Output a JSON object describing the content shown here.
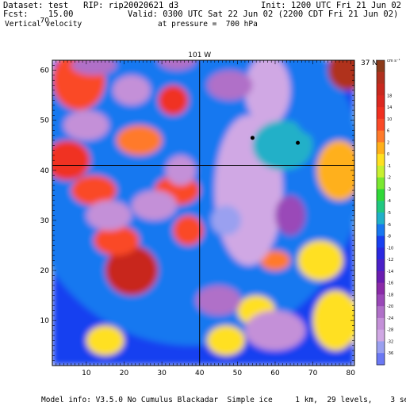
{
  "header": {
    "dataset": "Dataset: test   RIP: rip20020621 d3",
    "init": "Init: 1200 UTC Fri 21 Jun 02",
    "fcst": "Fcst:    15.00",
    "valid": "Valid: 0300 UTC Sat 22 Jun 02 (2200 CDT Fri 21 Jun 02)",
    "field": "Vertical velocity",
    "pressure": "at pressure =  700 hPa"
  },
  "footer": {
    "model_info": "Model info: V3.5.0 No Cumulus Blackadar  Simple ice     1 km,  29 levels,    3 sec"
  },
  "chart_data": {
    "type": "heatmap",
    "title": "Vertical velocity",
    "xlim": [
      1,
      81
    ],
    "ylim": [
      1,
      62
    ],
    "x_ticks": [
      10,
      20,
      30,
      40,
      50,
      60,
      70,
      80
    ],
    "y_ticks": [
      10,
      20,
      30,
      40,
      50,
      60,
      70
    ],
    "crosshair": {
      "x": 40,
      "y": 41,
      "x_label": "101 W",
      "y_label": "37 N"
    },
    "points": [
      {
        "x": 54,
        "y": 46.5
      },
      {
        "x": 66,
        "y": 45.5
      }
    ],
    "colorbar": {
      "unit": "cm s⁻¹",
      "levels": [
        {
          "label": "",
          "color": "#8b3a1a"
        },
        {
          "label": "",
          "color": "#b0301e"
        },
        {
          "label": "18",
          "color": "#c8281e"
        },
        {
          "label": "14",
          "color": "#dc2820"
        },
        {
          "label": "10",
          "color": "#f03020"
        },
        {
          "label": "6",
          "color": "#fa4a28"
        },
        {
          "label": "2",
          "color": "#ff7a2a"
        },
        {
          "label": "0",
          "color": "#ffb01a"
        },
        {
          "label": "-1",
          "color": "#ffe020"
        },
        {
          "label": "-2",
          "color": "#c8f030"
        },
        {
          "label": "-3",
          "color": "#7ae830"
        },
        {
          "label": "-4",
          "color": "#30d838"
        },
        {
          "label": "-5",
          "color": "#20c880"
        },
        {
          "label": "-6",
          "color": "#20b0c8"
        },
        {
          "label": "-8",
          "color": "#1878f0"
        },
        {
          "label": "-10",
          "color": "#1840f0"
        },
        {
          "label": "-12",
          "color": "#2a28e0"
        },
        {
          "label": "-14",
          "color": "#4a20c8"
        },
        {
          "label": "-16",
          "color": "#6a1cb0"
        },
        {
          "label": "-18",
          "color": "#8a2aa8"
        },
        {
          "label": "-20",
          "color": "#9a48b8"
        },
        {
          "label": "-24",
          "color": "#b070c8"
        },
        {
          "label": "-28",
          "color": "#c490d8"
        },
        {
          "label": "-32",
          "color": "#d0a8e4"
        },
        {
          "label": "-36",
          "color": "#9aa0f0"
        },
        {
          "label": "",
          "color": "#6a78f4"
        }
      ]
    },
    "field_blobs": [
      {
        "x": 38,
        "y": 40,
        "rx": 45,
        "ry": 35,
        "v": 0.45
      },
      {
        "x": 8,
        "y": 58,
        "rx": 7,
        "ry": 6,
        "v": 0.8
      },
      {
        "x": 5,
        "y": 42,
        "rx": 6,
        "ry": 4,
        "v": 0.85
      },
      {
        "x": 22,
        "y": 20,
        "rx": 7,
        "ry": 5,
        "v": 0.9
      },
      {
        "x": 18,
        "y": 26,
        "rx": 6,
        "ry": 3,
        "v": 0.8
      },
      {
        "x": 33,
        "y": 54,
        "rx": 4,
        "ry": 3,
        "v": 0.85
      },
      {
        "x": 24,
        "y": 46,
        "rx": 6,
        "ry": 3,
        "v": 0.75
      },
      {
        "x": 34,
        "y": 36,
        "rx": 6,
        "ry": 3,
        "v": 0.8
      },
      {
        "x": 12,
        "y": 36,
        "rx": 6,
        "ry": 3,
        "v": 0.8
      },
      {
        "x": 15,
        "y": 6,
        "rx": 5,
        "ry": 3,
        "v": 0.7
      },
      {
        "x": 79,
        "y": 60,
        "rx": 5,
        "ry": 4,
        "v": 0.95
      },
      {
        "x": 60,
        "y": 22,
        "rx": 4,
        "ry": 2,
        "v": 0.75
      },
      {
        "x": 55,
        "y": 12,
        "rx": 5,
        "ry": 3,
        "v": 0.7
      },
      {
        "x": 77,
        "y": 40,
        "rx": 6,
        "ry": 6,
        "v": 0.72
      },
      {
        "x": 76,
        "y": 10,
        "rx": 6,
        "ry": 6,
        "v": 0.68
      },
      {
        "x": 47,
        "y": 6,
        "rx": 5,
        "ry": 3,
        "v": 0.68
      },
      {
        "x": 37,
        "y": 28,
        "rx": 4,
        "ry": 3,
        "v": 0.78
      },
      {
        "x": 72,
        "y": 22,
        "rx": 6,
        "ry": 4,
        "v": 0.7
      },
      {
        "x": 53,
        "y": 36,
        "rx": 9,
        "ry": 15,
        "v": 0.08
      },
      {
        "x": 58,
        "y": 56,
        "rx": 6,
        "ry": 7,
        "v": 0.1
      },
      {
        "x": 47,
        "y": 30,
        "rx": 4,
        "ry": 3,
        "v": 0.05
      },
      {
        "x": 24,
        "y": 68,
        "rx": 4,
        "ry": 5,
        "v": 0.05
      },
      {
        "x": 22,
        "y": 56,
        "rx": 5,
        "ry": 3,
        "v": 0.12
      },
      {
        "x": 10,
        "y": 49,
        "rx": 6,
        "ry": 3,
        "v": 0.14
      },
      {
        "x": 28,
        "y": 33,
        "rx": 6,
        "ry": 3,
        "v": 0.12
      },
      {
        "x": 35,
        "y": 40,
        "rx": 4,
        "ry": 3,
        "v": 0.14
      },
      {
        "x": 16,
        "y": 31,
        "rx": 6,
        "ry": 3,
        "v": 0.13
      },
      {
        "x": 60,
        "y": 8,
        "rx": 8,
        "ry": 4,
        "v": 0.12
      },
      {
        "x": 45,
        "y": 14,
        "rx": 6,
        "ry": 3,
        "v": 0.15
      },
      {
        "x": 64,
        "y": 31,
        "rx": 4,
        "ry": 4,
        "v": 0.2
      },
      {
        "x": 48,
        "y": 57,
        "rx": 6,
        "ry": 3,
        "v": 0.18
      },
      {
        "x": 12,
        "y": 61,
        "rx": 6,
        "ry": 2,
        "v": 0.18
      },
      {
        "x": 34,
        "y": 62,
        "rx": 5,
        "ry": 2,
        "v": 0.15
      },
      {
        "x": 62,
        "y": 45,
        "rx": 8,
        "ry": 5,
        "v": 0.5
      },
      {
        "x": 70,
        "y": 52,
        "rx": 5,
        "ry": 5,
        "v": 0.45
      }
    ]
  }
}
